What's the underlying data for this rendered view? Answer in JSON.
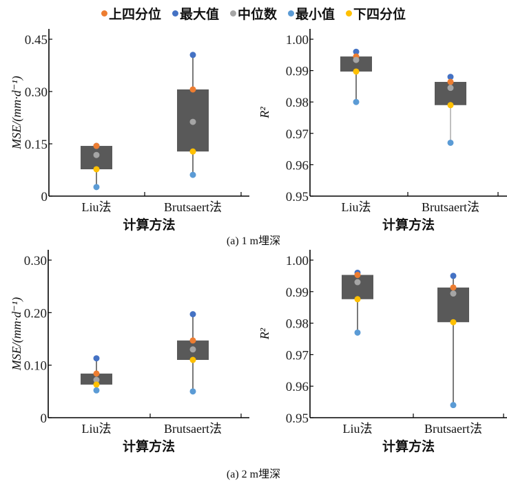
{
  "legend": [
    {
      "label": "上四分位",
      "key": "q3",
      "color": "#ED7D31"
    },
    {
      "label": "最大值",
      "key": "max",
      "color": "#4472C4"
    },
    {
      "label": "中位数",
      "key": "median",
      "color": "#A5A5A5"
    },
    {
      "label": "最小值",
      "key": "min",
      "color": "#5B9BD5"
    },
    {
      "label": "下四分位",
      "key": "q1",
      "color": "#FFC000"
    }
  ],
  "box_color": "#595959",
  "captions": [
    "(a) 1 m埋深",
    "(a) 2 m埋深"
  ],
  "chart_data": [
    {
      "type": "box",
      "panel": "1m-MSE",
      "xlabel": "计算方法",
      "ylabel": "MSE/(mm·d⁻¹)",
      "categories": [
        "Liu法",
        "Brutsaert法"
      ],
      "ylim": [
        0,
        0.45
      ],
      "yticks": [
        0,
        0.15,
        0.3,
        0.45
      ],
      "ytick_labels": [
        "0",
        "0.15",
        "0.30",
        "0.45"
      ],
      "series": [
        {
          "category": "Liu法",
          "max": 0.144,
          "q3": 0.144,
          "median": 0.118,
          "q1": 0.077,
          "min": 0.026
        },
        {
          "category": "Brutsaert法",
          "max": 0.405,
          "q3": 0.306,
          "median": 0.213,
          "q1": 0.128,
          "min": 0.061
        }
      ]
    },
    {
      "type": "box",
      "panel": "1m-R2",
      "xlabel": "计算方法",
      "ylabel": "R²",
      "categories": [
        "Liu法",
        "Brutsaert法"
      ],
      "ylim": [
        0.95,
        1.0
      ],
      "yticks": [
        0.95,
        0.96,
        0.97,
        0.98,
        0.99,
        1.0
      ],
      "ytick_labels": [
        "0.95",
        "0.96",
        "0.97",
        "0.98",
        "0.99",
        "1.00"
      ],
      "series": [
        {
          "category": "Liu法",
          "max": 0.996,
          "q3": 0.9945,
          "median": 0.9934,
          "q1": 0.9897,
          "min": 0.98
        },
        {
          "category": "Brutsaert法",
          "max": 0.988,
          "q3": 0.9864,
          "median": 0.9845,
          "q1": 0.979,
          "min": 0.967
        }
      ]
    },
    {
      "type": "box",
      "panel": "2m-MSE",
      "xlabel": "计算方法",
      "ylabel": "MSE/(mm·d⁻¹)",
      "categories": [
        "Liu法",
        "Brutsaert法"
      ],
      "ylim": [
        0,
        0.33
      ],
      "yticks": [
        0,
        0.1,
        0.2,
        0.3
      ],
      "ytick_labels": [
        "0",
        "0.10",
        "0.20",
        "0.30"
      ],
      "series": [
        {
          "category": "Liu法",
          "max": 0.113,
          "q3": 0.084,
          "median": 0.072,
          "q1": 0.063,
          "min": 0.052
        },
        {
          "category": "Brutsaert法",
          "max": 0.197,
          "q3": 0.147,
          "median": 0.13,
          "q1": 0.11,
          "min": 0.05
        }
      ]
    },
    {
      "type": "box",
      "panel": "2m-R2",
      "xlabel": "计算方法",
      "ylabel": "R²",
      "categories": [
        "Liu法",
        "Brutsaert法"
      ],
      "ylim": [
        0.95,
        1.005
      ],
      "yticks": [
        0.95,
        0.96,
        0.97,
        0.98,
        0.99,
        1.0
      ],
      "ytick_labels": [
        "0.95",
        "0.96",
        "0.97",
        "0.98",
        "0.99",
        "1.00"
      ],
      "series": [
        {
          "category": "Liu法",
          "max": 0.996,
          "q3": 0.9953,
          "median": 0.993,
          "q1": 0.9876,
          "min": 0.977
        },
        {
          "category": "Brutsaert法",
          "max": 0.995,
          "q3": 0.9913,
          "median": 0.9894,
          "q1": 0.9803,
          "min": 0.954
        }
      ]
    }
  ]
}
